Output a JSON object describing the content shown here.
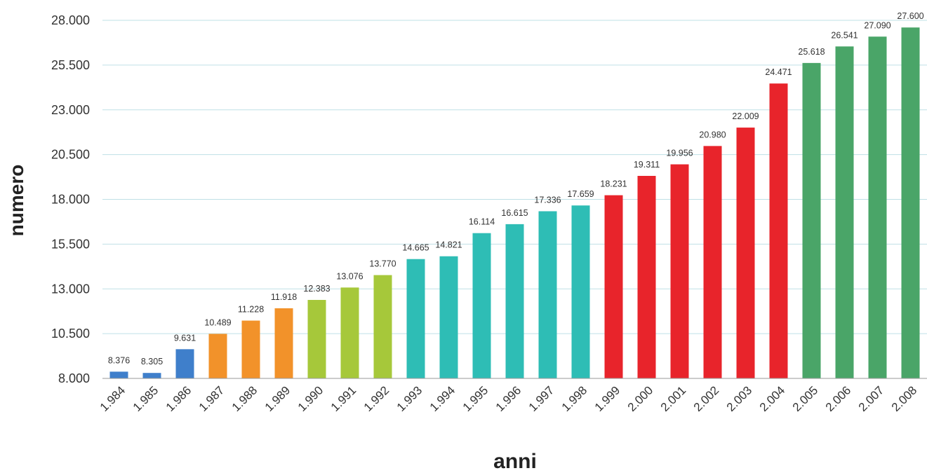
{
  "chart_data": {
    "type": "bar",
    "title": "",
    "xlabel": "anni",
    "ylabel": "numero",
    "ylim": [
      8000,
      28000
    ],
    "yticks": [
      8000,
      10500,
      13000,
      15500,
      18000,
      20500,
      23000,
      25500,
      28000
    ],
    "ytick_labels": [
      "8.000",
      "10.500",
      "13.000",
      "15.500",
      "18.000",
      "20.500",
      "23.000",
      "25.500",
      "28.000"
    ],
    "grid": true,
    "legend": "none",
    "categories": [
      "1.984",
      "1.985",
      "1.986",
      "1.987",
      "1.988",
      "1.989",
      "1.990",
      "1.991",
      "1.992",
      "1.993",
      "1.994",
      "1.995",
      "1.996",
      "1.997",
      "1.998",
      "1.999",
      "2.000",
      "2.001",
      "2.002",
      "2.003",
      "2.004",
      "2.005",
      "2.006",
      "2.007",
      "2.008"
    ],
    "values": [
      8376,
      8305,
      9631,
      10489,
      11228,
      11918,
      12383,
      13076,
      13770,
      14665,
      14821,
      16114,
      16615,
      17336,
      17659,
      18231,
      19311,
      19956,
      20980,
      22009,
      24471,
      25618,
      26541,
      27090,
      27600
    ],
    "value_labels": [
      "8.376",
      "8.305",
      "9.631",
      "10.489",
      "11.228",
      "11.918",
      "12.383",
      "13.076",
      "13.770",
      "14.665",
      "14.821",
      "16.114",
      "16.615",
      "17.336",
      "17.659",
      "18.231",
      "19.311",
      "19.956",
      "20.980",
      "22.009",
      "24.471",
      "25.618",
      "26.541",
      "27.090",
      "27.600"
    ],
    "bar_colors": [
      "#3f7fcb",
      "#3f7fcb",
      "#3f7fcb",
      "#f2922a",
      "#f2922a",
      "#f2922a",
      "#a6c83a",
      "#a6c83a",
      "#a6c83a",
      "#2ebdb5",
      "#2ebdb5",
      "#2ebdb5",
      "#2ebdb5",
      "#2ebdb5",
      "#2ebdb5",
      "#e8242b",
      "#e8242b",
      "#e8242b",
      "#e8242b",
      "#e8242b",
      "#e8242b",
      "#4aa568",
      "#4aa568",
      "#4aa568",
      "#4aa568"
    ]
  }
}
